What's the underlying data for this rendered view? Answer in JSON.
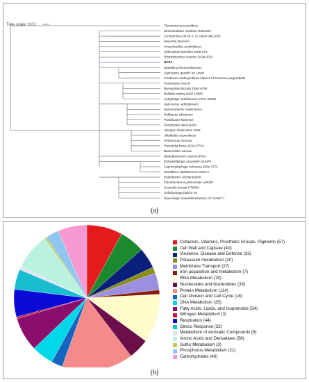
{
  "panel_a": {
    "label": "(a)",
    "tree_scale_label": "Tree scale: 0.01",
    "highlight_color": "#3333cc",
    "taxa": [
      "Thermococcus pacificus",
      "Sinorhizobium medicae WSM419",
      "Escherichia coli str K 12 substr MG1655",
      "Nocardia farcinica",
      "Anoxybacillus amylolyticus",
      "Chlorobium luteolum DSM 273",
      "Rhodothermus marinus DSM 4252",
      "RC24",
      "Niabella pinsenosidivorans",
      "Saprospira grandis str Lewin",
      "Cardinium endosymbiont cEper1 of Encarsia pergandiella",
      "Pedobacter steynii",
      "Bernardetia litoralis DSM 6794",
      "Belliella baltica DSM 15883",
      "Cytophaga hutchinsonii ATCC 33406",
      "Spirosoma radiotolerans",
      "Hymenobacter sedentarius",
      "Rufibacter tibetensis",
      "Pontibacter korlensis",
      "Pontibacter akesuensis",
      "Alistipes shahii WAL 8301",
      "Alkalitalea saponilacus",
      "Petrimonas mucosa",
      "Prevotella fusca JCM 17724",
      "Bacteroides caccae",
      "Blattabacterium cuenoti BPAA",
      "Elizabethkingia anophelis NUHP1",
      "Capnocytophaga ochracea DSM 7271",
      "Nonlabens dokdonensis DSW 6",
      "Polaribacter reichenbachii",
      "Flavobacterium johnsoniae UW101",
      "Gramella forsetii KT0803",
      "Cellulophaga baltica 18",
      "Siansivirga zeaxanthinifaciens CC SAMT 1"
    ]
  },
  "panel_b": {
    "label": "(b)",
    "chart_data": {
      "type": "pie",
      "title": "",
      "slices": [
        {
          "label": "Cofactors, Vitamins, Prosthetic Groups, Pigments (57)",
          "value": 57,
          "color": "#e41a1c"
        },
        {
          "label": "Cell Wall and Capsule (40)",
          "value": 40,
          "color": "#1b8a2e"
        },
        {
          "label": "Virulence, Disease and Defense (33)",
          "value": 33,
          "color": "#0a1f7a"
        },
        {
          "label": "Potassium metabolism (10)",
          "value": 10,
          "color": "#8c8c1a"
        },
        {
          "label": "Membrane Transport (27)",
          "value": 27,
          "color": "#9a8fe0"
        },
        {
          "label": "Iron acquisition and metabolism (7)",
          "value": 7,
          "color": "#8a1a0e"
        },
        {
          "label": "RNA Metabolism (78)",
          "value": 78,
          "color": "#fffccc"
        },
        {
          "label": "Nucleosides and Nucleotides (33)",
          "value": 33,
          "color": "#6b0f4a"
        },
        {
          "label": "Protein Metabolism (114)",
          "value": 114,
          "color": "#f48a8a"
        },
        {
          "label": "Cell Division and Cell Cycle (18)",
          "value": 18,
          "color": "#1565c0"
        },
        {
          "label": "DNA Metabolism (35)",
          "value": 35,
          "color": "#00d8e8"
        },
        {
          "label": "Fatty Acids, Lipids, and Isoprenoids (54)",
          "value": 54,
          "color": "#8b0d6e"
        },
        {
          "label": "Nitrogen Metabolism (3)",
          "value": 3,
          "color": "#c4193a"
        },
        {
          "label": "Respiration (44)",
          "value": 44,
          "color": "#0a0ad6"
        },
        {
          "label": "Stress Response (32)",
          "value": 32,
          "color": "#1abccf"
        },
        {
          "label": "Metabolism of Aromatic Compounds (6)",
          "value": 6,
          "color": "#dfe3f4"
        },
        {
          "label": "Amino Acids and Derivatives (58)",
          "value": 58,
          "color": "#b9f3df"
        },
        {
          "label": "Sulfur Metabolism (3)",
          "value": 3,
          "color": "#c8c84a"
        },
        {
          "label": "Phosphorus Metabolism (21)",
          "value": 21,
          "color": "#8fc7f2"
        },
        {
          "label": "Carbohydrates (46)",
          "value": 46,
          "color": "#f79ad3"
        }
      ]
    }
  }
}
